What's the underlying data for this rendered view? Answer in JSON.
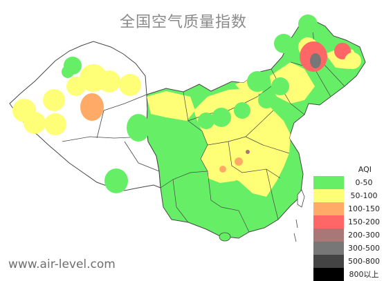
{
  "title": "全国空气质量指数",
  "watermark": "www.air-level.com",
  "legend": {
    "title": "AQI",
    "items": [
      {
        "label": "0-50",
        "color": "#66ee66"
      },
      {
        "label": "50-100",
        "color": "#ffff77"
      },
      {
        "label": "100-150",
        "color": "#ffaa66"
      },
      {
        "label": "150-200",
        "color": "#ff6666"
      },
      {
        "label": "200-300",
        "color": "#aa7777"
      },
      {
        "label": "300-500",
        "color": "#777777"
      },
      {
        "label": "500-800",
        "color": "#444444"
      },
      {
        "label": "800以上",
        "color": "#000000"
      }
    ]
  }
}
